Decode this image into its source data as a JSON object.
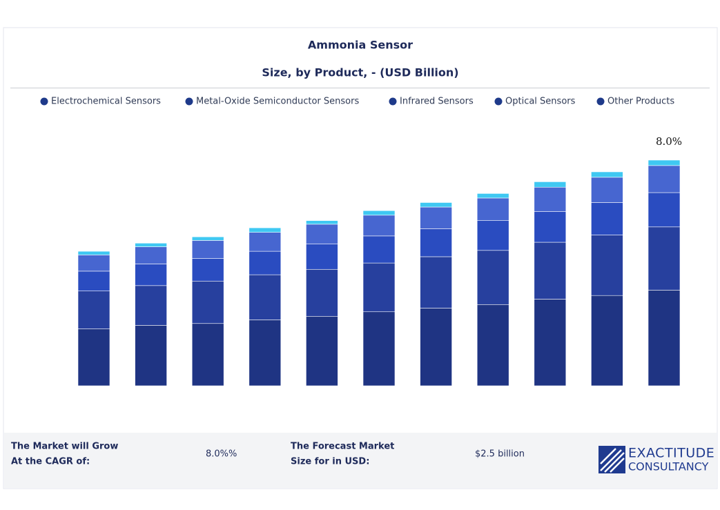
{
  "chart_data": {
    "type": "stacked_bar",
    "title": "Ammonia Sensor",
    "subtitle": "Size, by Product, - (USD Billion)",
    "categories": [
      null,
      null,
      null,
      null,
      null,
      null,
      null,
      null,
      null,
      null,
      null
    ],
    "series": [
      {
        "name": "Electrochemical Sensors",
        "color": "#1f3483",
        "values": [
          0.63,
          0.67,
          0.69,
          0.73,
          0.77,
          0.82,
          0.86,
          0.9,
          0.96,
          1.0,
          1.06
        ]
      },
      {
        "name": "Metal-Oxide Semiconductor Sensors",
        "color": "#27409e",
        "values": [
          0.42,
          0.44,
          0.47,
          0.5,
          0.52,
          0.54,
          0.57,
          0.6,
          0.63,
          0.67,
          0.7
        ]
      },
      {
        "name": "Infrared Sensors",
        "color": "#2a4cc0",
        "values": [
          0.22,
          0.24,
          0.25,
          0.26,
          0.28,
          0.3,
          0.31,
          0.33,
          0.34,
          0.36,
          0.38
        ]
      },
      {
        "name": "Optical Sensors",
        "color": "#4766d0",
        "values": [
          0.18,
          0.19,
          0.2,
          0.21,
          0.22,
          0.23,
          0.24,
          0.25,
          0.27,
          0.28,
          0.3
        ]
      },
      {
        "name": "Other Products",
        "color": "#3fc8f2",
        "values": [
          0.04,
          0.04,
          0.04,
          0.05,
          0.04,
          0.05,
          0.05,
          0.05,
          0.06,
          0.06,
          0.06
        ]
      }
    ],
    "legend_marker_color": "#1e3a8a",
    "ylim": [
      0,
      2.5
    ],
    "annotation": "8.0%"
  },
  "footer": {
    "cagr_label": [
      "The Market will Grow",
      "At the CAGR of:"
    ],
    "cagr_value": "8.0%%",
    "size_label": [
      "The Forecast Market",
      "Size for in USD:"
    ],
    "size_value": "$2.5 billion",
    "logo": [
      "EXACTITUDE",
      "CONSULTANCY"
    ]
  }
}
